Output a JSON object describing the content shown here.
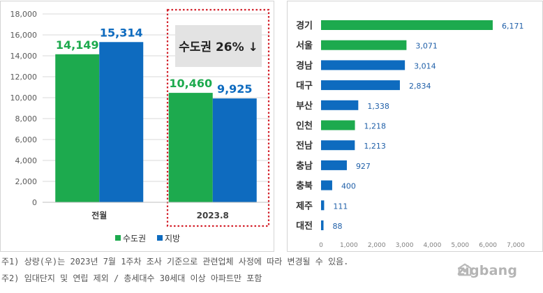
{
  "chart_data": [
    {
      "type": "bar",
      "categories": [
        "전월",
        "2023.8"
      ],
      "series": [
        {
          "name": "수도권",
          "values": [
            14149,
            10460
          ],
          "color": "#1daa4e"
        },
        {
          "name": "지방",
          "values": [
            15314,
            9925
          ],
          "color": "#0e6bbf"
        }
      ],
      "data_labels": [
        [
          "14,149",
          "15,314"
        ],
        [
          "10,460",
          "9,925"
        ]
      ],
      "ylim": [
        0,
        18000
      ],
      "yticks": [
        "0",
        "2,000",
        "4,000",
        "6,000",
        "8,000",
        "10,000",
        "12,000",
        "14,000",
        "16,000",
        "18,000"
      ],
      "grid": true,
      "legend_placement": "bottom",
      "annotation": "수도권 26% ↓",
      "highlight_color": "#d3202a"
    },
    {
      "type": "bar",
      "orientation": "horizontal",
      "categories": [
        "경기",
        "서울",
        "경남",
        "대구",
        "부산",
        "인천",
        "전남",
        "충남",
        "충북",
        "제주",
        "대전"
      ],
      "values": [
        6171,
        3071,
        3014,
        2834,
        1338,
        1218,
        1213,
        927,
        400,
        111,
        88
      ],
      "value_labels": [
        "6,171",
        "3,071",
        "3,014",
        "2,834",
        "1,338",
        "1,218",
        "1,213",
        "927",
        "400",
        "111",
        "88"
      ],
      "region_group": [
        "수도권",
        "수도권",
        "지방",
        "지방",
        "지방",
        "수도권",
        "지방",
        "지방",
        "지방",
        "지방",
        "지방"
      ],
      "colors": {
        "수도권": "#1daa4e",
        "지방": "#0e6bbf"
      },
      "xlim": [
        0,
        7000
      ],
      "xticks": [
        "0",
        "1,000",
        "2,000",
        "3,000",
        "4,000",
        "5,000",
        "6,000",
        "7,000"
      ]
    }
  ],
  "footnotes": [
    "주1) 상량(우)는 2023년 7월 1주차 조사 기준으로 관련업체 사정에 따라 변경될 수 있음.",
    "주2) 임대단지 및 연립 제외 / 총세대수 30세대 이상 아파트만 포함"
  ],
  "brand": {
    "name": "zigbang",
    "icon": "zigbang-logo-icon"
  }
}
